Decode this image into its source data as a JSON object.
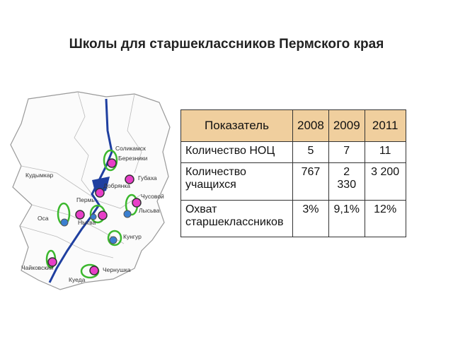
{
  "header": {
    "title": "Школы для старшеклассников Пермского края"
  },
  "table": {
    "columns": [
      "Показатель",
      "2008",
      "2009",
      "2011"
    ],
    "rows": [
      [
        "Количество НОЦ",
        "5",
        "7",
        "11"
      ],
      [
        "Количество учащихся",
        "767",
        "2 330",
        "3 200"
      ],
      [
        "Охват старшеклассников",
        "3%",
        "9,1%",
        "12%"
      ]
    ]
  },
  "map": {
    "labels": [
      "Соликамск",
      "Березники",
      "Кудымкар",
      "Губаха",
      "Добрянка",
      "Пермь",
      "Чусовой",
      "Лысьва",
      "Оса",
      "Нытва",
      "Кунгур",
      "Чайковский",
      "Чернушка",
      "Куеда"
    ]
  }
}
